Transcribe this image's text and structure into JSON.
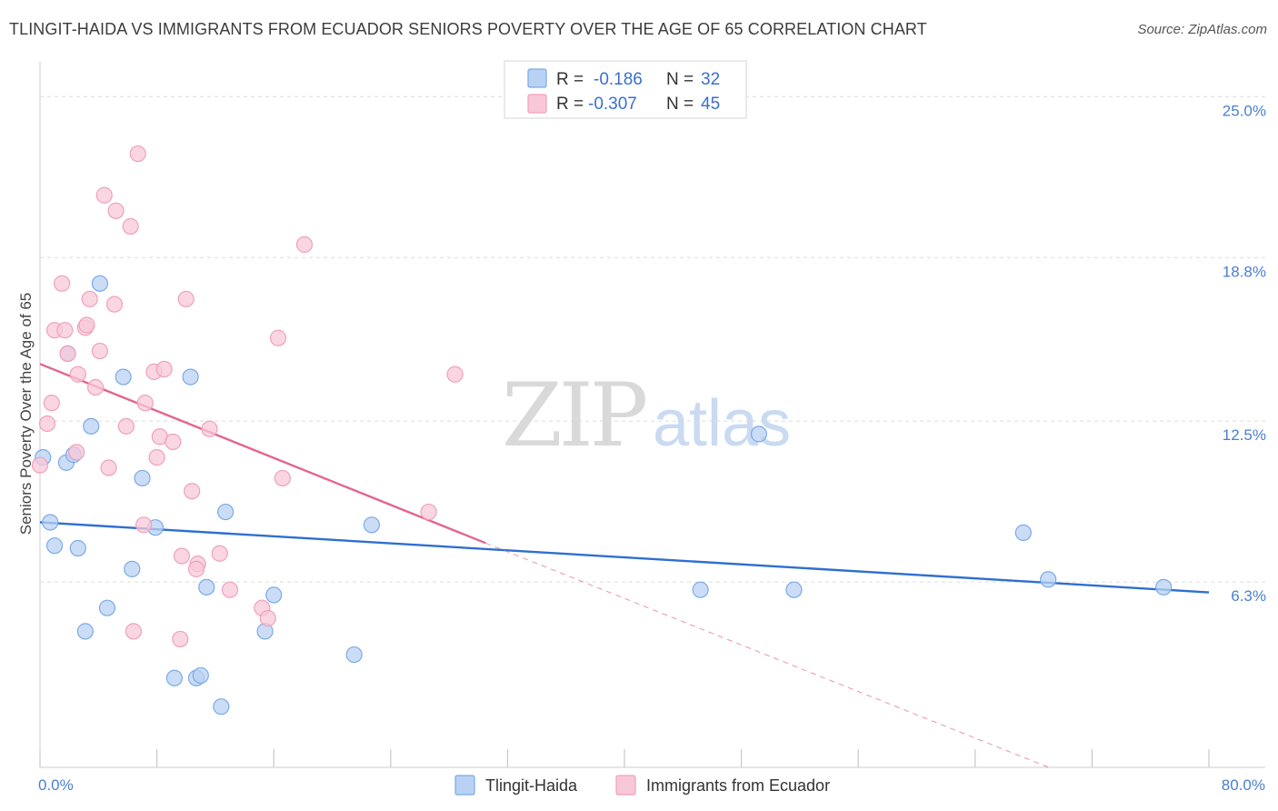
{
  "title": "TLINGIT-HAIDA VS IMMIGRANTS FROM ECUADOR SENIORS POVERTY OVER THE AGE OF 65 CORRELATION CHART",
  "source": "Source: ZipAtlas.com",
  "watermark": {
    "zip": "ZIP",
    "atlas": "atlas"
  },
  "chart_data": {
    "type": "scatter",
    "xlabel": "",
    "ylabel": "Seniors Poverty Over the Age of 65",
    "xlim": [
      0,
      80
    ],
    "ylim": [
      0,
      26.2
    ],
    "x_tick_labels": [
      {
        "value": 0,
        "label": "0.0%"
      },
      {
        "value": 80,
        "label": "80.0%"
      }
    ],
    "x_minor_ticks": [
      0,
      8,
      16,
      24,
      32,
      40,
      48,
      56,
      64,
      72,
      80
    ],
    "y_ticks": [
      {
        "value": 6.3,
        "label": "6.3%"
      },
      {
        "value": 12.5,
        "label": "12.5%"
      },
      {
        "value": 18.8,
        "label": "18.8%"
      },
      {
        "value": 25.0,
        "label": "25.0%"
      }
    ],
    "legend_stats": [
      {
        "r_label": "R =",
        "r_value": "-0.186",
        "n_label": "N =",
        "n_value": "32"
      },
      {
        "r_label": "R =",
        "r_value": "-0.307",
        "n_label": "N =",
        "n_value": "45"
      }
    ],
    "series": [
      {
        "name": "Tlingit-Haida",
        "color": "#7aaae8",
        "fill": "#b9d2f3",
        "trend": {
          "x0": 0,
          "y0": 8.6,
          "x1": 80,
          "y1": 5.9,
          "color": "#2f6fd0"
        },
        "points": [
          [
            0.2,
            11.1
          ],
          [
            1.8,
            10.9
          ],
          [
            2.3,
            11.2
          ],
          [
            1.9,
            15.1
          ],
          [
            4.1,
            17.8
          ],
          [
            5.7,
            14.2
          ],
          [
            10.3,
            14.2
          ],
          [
            3.5,
            12.3
          ],
          [
            7.0,
            10.3
          ],
          [
            0.7,
            8.6
          ],
          [
            1.0,
            7.7
          ],
          [
            2.6,
            7.6
          ],
          [
            7.9,
            8.4
          ],
          [
            12.7,
            9.0
          ],
          [
            22.7,
            8.5
          ],
          [
            6.3,
            6.8
          ],
          [
            11.4,
            6.1
          ],
          [
            16.0,
            5.8
          ],
          [
            4.6,
            5.3
          ],
          [
            3.1,
            4.4
          ],
          [
            15.4,
            4.4
          ],
          [
            21.5,
            3.5
          ],
          [
            9.2,
            2.6
          ],
          [
            10.7,
            2.6
          ],
          [
            11.0,
            2.7
          ],
          [
            12.4,
            1.5
          ],
          [
            49.2,
            12.0
          ],
          [
            45.2,
            6.0
          ],
          [
            51.6,
            6.0
          ],
          [
            67.3,
            8.2
          ],
          [
            69.0,
            6.4
          ],
          [
            76.9,
            6.1
          ]
        ]
      },
      {
        "name": "Immigrants from Ecuador",
        "color": "#f0a0bd",
        "fill": "#f8c8d8",
        "trend": {
          "x0": 0,
          "y0": 14.7,
          "x1": 30.5,
          "y1": 7.8,
          "color": "#e26592"
        },
        "trend_dashed": {
          "x0": 30.5,
          "y0": 7.8,
          "x1": 80,
          "y1": -3.3
        },
        "points": [
          [
            6.7,
            22.8
          ],
          [
            4.4,
            21.2
          ],
          [
            5.2,
            20.6
          ],
          [
            6.2,
            20.0
          ],
          [
            18.1,
            19.3
          ],
          [
            1.5,
            17.8
          ],
          [
            3.4,
            17.2
          ],
          [
            5.1,
            17.0
          ],
          [
            10.0,
            17.2
          ],
          [
            1.0,
            16.0
          ],
          [
            1.7,
            16.0
          ],
          [
            3.1,
            16.1
          ],
          [
            3.2,
            16.2
          ],
          [
            16.3,
            15.7
          ],
          [
            4.1,
            15.2
          ],
          [
            1.9,
            15.1
          ],
          [
            2.6,
            14.3
          ],
          [
            7.8,
            14.4
          ],
          [
            8.5,
            14.5
          ],
          [
            28.4,
            14.3
          ],
          [
            3.8,
            13.8
          ],
          [
            0.8,
            13.2
          ],
          [
            7.2,
            13.2
          ],
          [
            0.5,
            12.4
          ],
          [
            5.9,
            12.3
          ],
          [
            11.6,
            12.2
          ],
          [
            8.2,
            11.9
          ],
          [
            9.1,
            11.7
          ],
          [
            2.5,
            11.3
          ],
          [
            8.0,
            11.1
          ],
          [
            4.7,
            10.7
          ],
          [
            0.0,
            10.8
          ],
          [
            16.6,
            10.3
          ],
          [
            10.4,
            9.8
          ],
          [
            26.6,
            9.0
          ],
          [
            7.1,
            8.5
          ],
          [
            9.7,
            7.3
          ],
          [
            12.3,
            7.4
          ],
          [
            10.8,
            7.0
          ],
          [
            10.7,
            6.8
          ],
          [
            13.0,
            6.0
          ],
          [
            15.2,
            5.3
          ],
          [
            15.6,
            4.9
          ],
          [
            6.4,
            4.4
          ],
          [
            9.6,
            4.1
          ]
        ]
      }
    ]
  }
}
